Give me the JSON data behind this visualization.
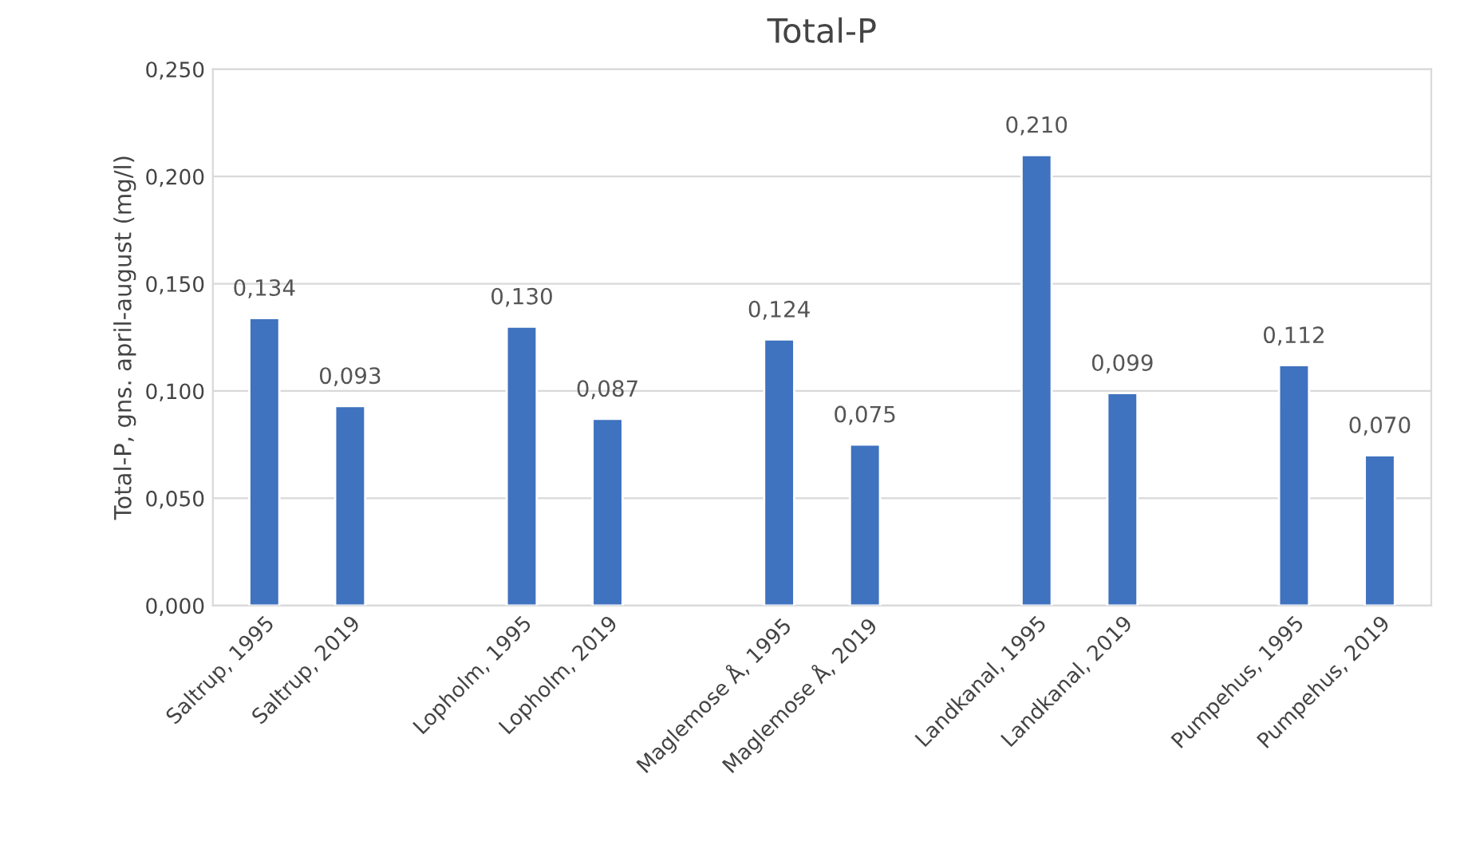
{
  "chart_data": {
    "type": "bar",
    "title": "Total-P",
    "ylabel": "Total-P, gns. april-august (mg/l)",
    "categories": [
      "Saltrup, 1995",
      "Saltrup, 2019",
      null,
      "Lopholm, 1995",
      "Lopholm, 2019",
      null,
      "Maglemose Å, 1995",
      "Maglemose Å, 2019",
      null,
      "Landkanal, 1995",
      "Landkanal, 2019",
      null,
      "Pumpehus, 1995",
      "Pumpehus, 2019"
    ],
    "values": [
      0.134,
      0.093,
      null,
      0.13,
      0.087,
      null,
      0.124,
      0.075,
      null,
      0.21,
      0.099,
      null,
      0.112,
      0.07
    ],
    "value_labels": [
      "0,134",
      "0,093",
      null,
      "0,130",
      "0,087",
      null,
      "0,124",
      "0,075",
      null,
      "0,210",
      "0,099",
      null,
      "0,112",
      "0,070"
    ],
    "color": "#3f72bf",
    "ylim": [
      0,
      0.25
    ],
    "yticks": [
      {
        "value": 0,
        "label": "0,000"
      },
      {
        "value": 0.05,
        "label": "0,050"
      },
      {
        "value": 0.1,
        "label": "0,100"
      },
      {
        "value": 0.15,
        "label": "0,150"
      },
      {
        "value": 0.2,
        "label": "0,200"
      },
      {
        "value": 0.25,
        "label": "0,250"
      }
    ],
    "grid": "y",
    "legend": false
  }
}
